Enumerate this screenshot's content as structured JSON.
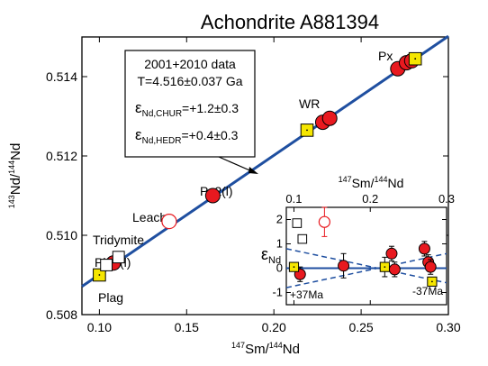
{
  "chart_data": {
    "type": "scatter",
    "title": "Achondrite A881394",
    "xlabel": {
      "sup": "147",
      "main": "Sm/",
      "sup2": "144",
      "end": "Nd"
    },
    "ylabel": {
      "sup": "143",
      "main": "Nd/",
      "sup2": "144",
      "end": "Nd"
    },
    "xlim": [
      0.09,
      0.3
    ],
    "ylim": [
      0.508,
      0.515
    ],
    "x_ticks": [
      "0.10",
      "0.15",
      "0.20",
      "0.25",
      "0.30"
    ],
    "x_tick_values": [
      0.1,
      0.15,
      0.2,
      0.25,
      0.3
    ],
    "y_ticks": [
      "0.508",
      "0.510",
      "0.512",
      "0.514"
    ],
    "y_tick_values": [
      0.508,
      0.51,
      0.512,
      0.514
    ],
    "colors": {
      "isochron": "#1f4fa0",
      "red_fill": "#e8191f",
      "yellow_fill": "#f5e600",
      "open_red": "#e8191f",
      "error_red": "#e8191f"
    },
    "isochron": {
      "x": [
        0.09,
        0.3
      ],
      "y": [
        0.50871,
        0.51502
      ]
    },
    "series": [
      {
        "marker": "filled-red-circle",
        "points": [
          [
            0.108,
            0.5093
          ],
          [
            0.165,
            0.511
          ],
          [
            0.228,
            0.51285
          ],
          [
            0.232,
            0.51295
          ],
          [
            0.271,
            0.5142
          ],
          [
            0.276,
            0.51435
          ],
          [
            0.279,
            0.5144
          ]
        ]
      },
      {
        "marker": "yellow-square",
        "points": [
          [
            0.1,
            0.509
          ],
          [
            0.219,
            0.51265
          ],
          [
            0.281,
            0.51445
          ]
        ]
      },
      {
        "marker": "open-square",
        "points": [
          [
            0.104,
            0.50925
          ],
          [
            0.111,
            0.50945
          ]
        ]
      },
      {
        "marker": "open-red-circle",
        "points": [
          [
            0.14,
            0.51035
          ]
        ]
      }
    ],
    "annotations": {
      "box_lines": [
        "2001+2010 data",
        "T=4.516±0.037 Ga"
      ],
      "eps_chur": {
        "sym": "ε",
        "sub": "Nd,CHUR",
        "val": "=+1.2±0.3"
      },
      "eps_hedr": {
        "sym": "ε",
        "sub": "Nd,HEDR",
        "val": "=+0.4±0.3"
      },
      "labels": [
        {
          "text": "Px"
        },
        {
          "text": "WR"
        },
        {
          "text": "Px2(l)"
        },
        {
          "text": "Leach"
        },
        {
          "text": "Tridymite"
        },
        {
          "text": "Plag(l)"
        },
        {
          "text": "Plag"
        }
      ]
    },
    "inset": {
      "type": "scatter",
      "xlabel": {
        "sup": "147",
        "main": "Sm/",
        "sup2": "144",
        "end": "Nd"
      },
      "ylabel": {
        "sym": "ε",
        "sub": "Nd"
      },
      "xlim": [
        0.09,
        0.3
      ],
      "ylim": [
        -1.5,
        2.5
      ],
      "x_ticks": [
        "0.1",
        "0.2",
        "0.3"
      ],
      "x_tick_values": [
        0.1,
        0.2,
        0.3
      ],
      "y_ticks": [
        "2",
        "1",
        "0",
        "-1"
      ],
      "y_tick_values": [
        2,
        1,
        0,
        -1
      ],
      "lines": [
        {
          "style": "solid",
          "x": [
            0.09,
            0.3
          ],
          "y": [
            0,
            0
          ]
        },
        {
          "style": "dashed",
          "label": "+37Ma",
          "x": [
            0.09,
            0.3
          ],
          "y": [
            0.8,
            -0.6
          ]
        },
        {
          "style": "dashed",
          "label": "-37Ma",
          "x": [
            0.09,
            0.3
          ],
          "y": [
            -0.8,
            0.6
          ]
        }
      ],
      "series": [
        {
          "marker": "filled-red-circle",
          "points": [
            {
              "x": 0.108,
              "y": -0.25,
              "err": 0.3
            },
            {
              "x": 0.165,
              "y": 0.1,
              "err": 0.5
            },
            {
              "x": 0.228,
              "y": 0.6,
              "err": 0.3
            },
            {
              "x": 0.232,
              "y": -0.05,
              "err": 0.3
            },
            {
              "x": 0.271,
              "y": 0.8,
              "err": 0.3
            },
            {
              "x": 0.276,
              "y": 0.25,
              "err": 0.3
            },
            {
              "x": 0.279,
              "y": 0.05,
              "err": 0.3
            }
          ]
        },
        {
          "marker": "yellow-square",
          "points": [
            {
              "x": 0.1,
              "y": 0.05,
              "err": 0.0
            },
            {
              "x": 0.219,
              "y": 0.05,
              "err": 0.4
            },
            {
              "x": 0.281,
              "y": -0.55,
              "err": 0.0
            }
          ]
        },
        {
          "marker": "open-square",
          "points": [
            {
              "x": 0.104,
              "y": 1.85,
              "err": 0.0
            },
            {
              "x": 0.111,
              "y": 1.2,
              "err": 0.0
            }
          ]
        },
        {
          "marker": "open-red-circle",
          "points": [
            {
              "x": 0.14,
              "y": 1.9,
              "err": 0.6
            }
          ]
        }
      ]
    }
  }
}
